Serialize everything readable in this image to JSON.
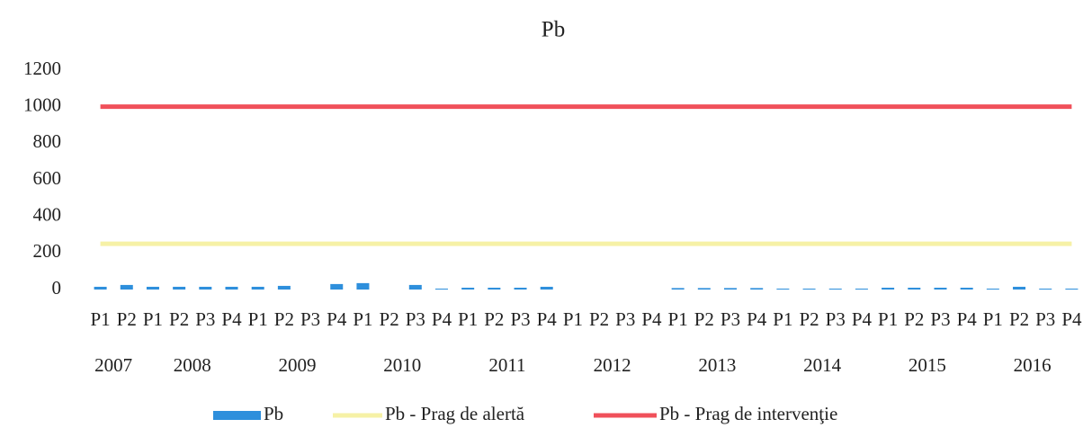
{
  "chart_data": {
    "type": "bar_line",
    "title": "Pb",
    "categories": [
      "P1",
      "P2",
      "P1",
      "P2",
      "P3",
      "P4",
      "P1",
      "P2",
      "P3",
      "P4",
      "P1",
      "P2",
      "P3",
      "P4",
      "P1",
      "P2",
      "P3",
      "P4",
      "P1",
      "P2",
      "P3",
      "P4",
      "P1",
      "P2",
      "P3",
      "P4",
      "P1",
      "P2",
      "P3",
      "P4",
      "P1",
      "P2",
      "P3",
      "P4",
      "P1",
      "P2",
      "P3",
      "P4"
    ],
    "years": [
      "2007",
      "2008",
      "2009",
      "2010",
      "2011",
      "2012",
      "2013",
      "2014",
      "2015",
      "2016"
    ],
    "series": [
      {
        "name": "Pb",
        "type": "bar",
        "color": "#2e8fdc",
        "values": [
          15,
          25,
          15,
          15,
          15,
          15,
          15,
          20,
          null,
          30,
          35,
          null,
          25,
          5,
          10,
          10,
          10,
          15,
          null,
          null,
          null,
          null,
          8,
          8,
          8,
          8,
          5,
          5,
          5,
          5,
          10,
          10,
          10,
          10,
          5,
          15,
          5,
          5
        ]
      },
      {
        "name": "Pb - Prag de alertă",
        "type": "line",
        "color": "#f6f1a6",
        "values": [
          250,
          250,
          250,
          250,
          250,
          250,
          250,
          250,
          250,
          250,
          250,
          250,
          250,
          250,
          250,
          250,
          250,
          250,
          250,
          250,
          250,
          250,
          250,
          250,
          250,
          250,
          250,
          250,
          250,
          250,
          250,
          250,
          250,
          250,
          250,
          250,
          250,
          250
        ]
      },
      {
        "name": "Pb - Prag de intervenţie",
        "type": "line",
        "color": "#f0505a",
        "values": [
          1000,
          1000,
          1000,
          1000,
          1000,
          1000,
          1000,
          1000,
          1000,
          1000,
          1000,
          1000,
          1000,
          1000,
          1000,
          1000,
          1000,
          1000,
          1000,
          1000,
          1000,
          1000,
          1000,
          1000,
          1000,
          1000,
          1000,
          1000,
          1000,
          1000,
          1000,
          1000,
          1000,
          1000,
          1000,
          1000,
          1000,
          1000
        ]
      }
    ],
    "ylim": [
      0,
      1200
    ],
    "yticks": [
      0,
      200,
      400,
      600,
      800,
      1000,
      1200
    ],
    "grid": false,
    "legend": "bottom"
  }
}
